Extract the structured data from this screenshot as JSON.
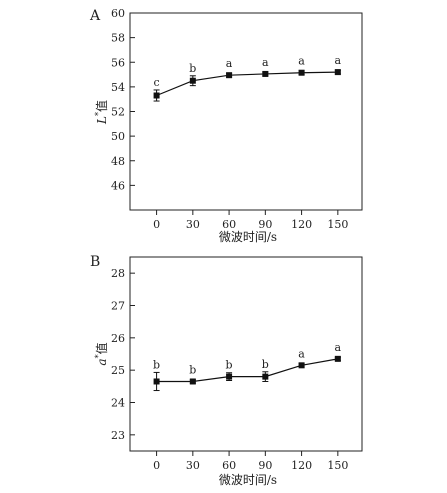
{
  "chart_data": [
    {
      "type": "line",
      "panel": "A",
      "x": [
        0,
        30,
        60,
        90,
        120,
        150
      ],
      "x_ticks": [
        "0",
        "30",
        "60",
        "90",
        "120",
        "150"
      ],
      "xlabel": "微波时间/s",
      "ylabel": "L*值",
      "ylabel_main": "L",
      "ylabel_sup": "*",
      "ylabel_suffix": "值",
      "ylim": [
        44,
        60
      ],
      "y_ticks": [
        46,
        48,
        50,
        52,
        54,
        56,
        58,
        60
      ],
      "grid": false,
      "series": [
        {
          "values": [
            53.3,
            54.5,
            54.95,
            55.05,
            55.15,
            55.2
          ],
          "errors": [
            0.45,
            0.4,
            0.15,
            0.15,
            0.15,
            0.15
          ],
          "labels": [
            "c",
            "b",
            "a",
            "a",
            "a",
            "a"
          ]
        }
      ]
    },
    {
      "type": "line",
      "panel": "B",
      "x": [
        0,
        30,
        60,
        90,
        120,
        150
      ],
      "x_ticks": [
        "0",
        "30",
        "60",
        "90",
        "120",
        "150"
      ],
      "xlabel": "微波时间/s",
      "ylabel": "a*值",
      "ylabel_main": "a",
      "ylabel_sup": "*",
      "ylabel_suffix": "值",
      "ylim": [
        22.5,
        28.5
      ],
      "y_ticks": [
        23,
        24,
        25,
        26,
        27,
        28
      ],
      "grid": false,
      "series": [
        {
          "values": [
            24.65,
            24.65,
            24.8,
            24.8,
            25.15,
            25.35
          ],
          "errors": [
            0.28,
            0.05,
            0.12,
            0.15,
            0.05,
            0.05
          ],
          "labels": [
            "b",
            "b",
            "b",
            "b",
            "a",
            "a"
          ]
        }
      ]
    }
  ]
}
